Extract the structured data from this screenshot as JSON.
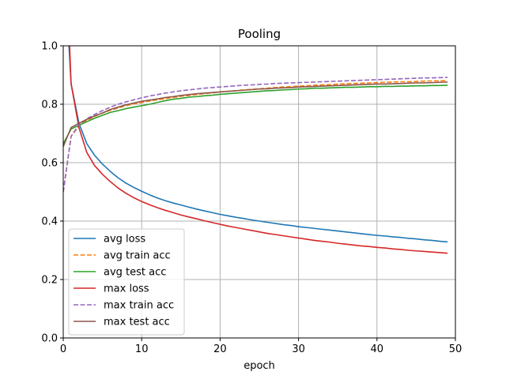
{
  "chart_data": {
    "type": "line",
    "title": "Pooling",
    "xlabel": "epoch",
    "ylabel": "",
    "xlim": [
      0,
      50
    ],
    "ylim": [
      0,
      1
    ],
    "xticks": [
      "0",
      "10",
      "20",
      "30",
      "40",
      "50"
    ],
    "yticks": [
      "0.0",
      "0.2",
      "0.4",
      "0.6",
      "0.8",
      "1.0"
    ],
    "grid": true,
    "legend_position": "bottom-left",
    "x": [
      0,
      1,
      2,
      3,
      4,
      5,
      6,
      7,
      8,
      9,
      10,
      11,
      12,
      13,
      14,
      15,
      16,
      17,
      18,
      19,
      20,
      21,
      22,
      23,
      24,
      25,
      26,
      27,
      28,
      29,
      30,
      31,
      32,
      33,
      34,
      35,
      36,
      37,
      38,
      39,
      40,
      41,
      42,
      43,
      44,
      45,
      46,
      47,
      48,
      49
    ],
    "series": [
      {
        "name": "avg loss",
        "color": "#1f77b4",
        "dash": "solid",
        "values": [
          1.35,
          0.87,
          0.735,
          0.665,
          0.625,
          0.595,
          0.57,
          0.548,
          0.53,
          0.515,
          0.502,
          0.49,
          0.479,
          0.47,
          0.462,
          0.455,
          0.448,
          0.441,
          0.435,
          0.429,
          0.423,
          0.418,
          0.413,
          0.409,
          0.404,
          0.4,
          0.396,
          0.392,
          0.388,
          0.385,
          0.381,
          0.378,
          0.375,
          0.372,
          0.369,
          0.366,
          0.363,
          0.36,
          0.357,
          0.354,
          0.351,
          0.349,
          0.346,
          0.344,
          0.341,
          0.339,
          0.336,
          0.334,
          0.331,
          0.329
        ]
      },
      {
        "name": "avg train acc",
        "color": "#ff7f0e",
        "dash": "dashed",
        "values": [
          0.5,
          0.69,
          0.725,
          0.745,
          0.758,
          0.77,
          0.779,
          0.787,
          0.795,
          0.801,
          0.806,
          0.811,
          0.815,
          0.819,
          0.823,
          0.827,
          0.83,
          0.833,
          0.836,
          0.839,
          0.842,
          0.844,
          0.846,
          0.849,
          0.851,
          0.853,
          0.855,
          0.857,
          0.859,
          0.86,
          0.862,
          0.863,
          0.865,
          0.866,
          0.867,
          0.869,
          0.87,
          0.871,
          0.872,
          0.873,
          0.874,
          0.875,
          0.876,
          0.877,
          0.877,
          0.878,
          0.879,
          0.88,
          0.88,
          0.881
        ]
      },
      {
        "name": "avg test acc",
        "color": "#2ca02c",
        "dash": "solid",
        "values": [
          0.665,
          0.715,
          0.728,
          0.74,
          0.752,
          0.762,
          0.772,
          0.778,
          0.785,
          0.79,
          0.795,
          0.8,
          0.806,
          0.812,
          0.817,
          0.82,
          0.824,
          0.826,
          0.829,
          0.831,
          0.834,
          0.836,
          0.838,
          0.84,
          0.842,
          0.844,
          0.846,
          0.847,
          0.849,
          0.85,
          0.852,
          0.853,
          0.855,
          0.855,
          0.856,
          0.857,
          0.858,
          0.858,
          0.859,
          0.86,
          0.86,
          0.861,
          0.861,
          0.862,
          0.862,
          0.863,
          0.863,
          0.864,
          0.864,
          0.865
        ]
      },
      {
        "name": "max loss",
        "color": "#d62728",
        "dash": "solid",
        "values": [
          1.55,
          0.87,
          0.72,
          0.635,
          0.59,
          0.56,
          0.535,
          0.513,
          0.495,
          0.48,
          0.467,
          0.456,
          0.446,
          0.437,
          0.429,
          0.421,
          0.414,
          0.408,
          0.401,
          0.395,
          0.389,
          0.383,
          0.378,
          0.373,
          0.368,
          0.363,
          0.358,
          0.354,
          0.35,
          0.346,
          0.342,
          0.338,
          0.334,
          0.331,
          0.328,
          0.324,
          0.321,
          0.318,
          0.315,
          0.313,
          0.31,
          0.308,
          0.305,
          0.303,
          0.3,
          0.298,
          0.296,
          0.294,
          0.292,
          0.29
        ]
      },
      {
        "name": "max train acc",
        "color": "#9467bd",
        "dash": "dashed",
        "values": [
          0.5,
          0.69,
          0.73,
          0.75,
          0.765,
          0.778,
          0.79,
          0.8,
          0.808,
          0.815,
          0.822,
          0.828,
          0.833,
          0.838,
          0.842,
          0.846,
          0.849,
          0.852,
          0.855,
          0.857,
          0.859,
          0.861,
          0.863,
          0.865,
          0.866,
          0.868,
          0.869,
          0.871,
          0.872,
          0.873,
          0.874,
          0.875,
          0.876,
          0.877,
          0.878,
          0.879,
          0.88,
          0.881,
          0.882,
          0.883,
          0.884,
          0.885,
          0.886,
          0.887,
          0.888,
          0.889,
          0.89,
          0.89,
          0.891,
          0.892
        ]
      },
      {
        "name": "max test acc",
        "color": "#8c564b",
        "dash": "solid",
        "values": [
          0.655,
          0.72,
          0.735,
          0.748,
          0.76,
          0.77,
          0.782,
          0.79,
          0.798,
          0.804,
          0.81,
          0.814,
          0.818,
          0.823,
          0.826,
          0.83,
          0.833,
          0.836,
          0.838,
          0.84,
          0.842,
          0.844,
          0.846,
          0.848,
          0.85,
          0.852,
          0.853,
          0.855,
          0.856,
          0.857,
          0.859,
          0.86,
          0.861,
          0.862,
          0.863,
          0.864,
          0.865,
          0.866,
          0.867,
          0.868,
          0.869,
          0.869,
          0.87,
          0.871,
          0.872,
          0.873,
          0.873,
          0.874,
          0.875,
          0.876
        ]
      }
    ]
  }
}
